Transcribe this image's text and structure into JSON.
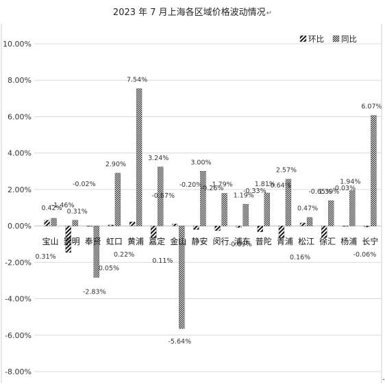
{
  "chart_data": {
    "type": "bar",
    "title": "2023 年 7 月上海各区域价格波动情况",
    "title_mark": "↵",
    "xlabel": "",
    "ylabel": "",
    "ylim": [
      -8,
      10
    ],
    "ytick_step": 2,
    "ytick_labels": [
      "-8.00%",
      "-6.00%",
      "-4.00%",
      "-2.00%",
      "0.00%",
      "2.00%",
      "4.00%",
      "6.00%",
      "8.00%",
      "10.00%"
    ],
    "categories": [
      "宝山",
      "崇明",
      "奉贤",
      "虹口",
      "黄浦",
      "嘉定",
      "金山",
      "静安",
      "闵行",
      "浦东",
      "普陀",
      "青浦",
      "松江",
      "徐汇",
      "杨浦",
      "长宁"
    ],
    "series": [
      {
        "name": "环比",
        "pattern": "diagonal-stripes",
        "values": [
          0.31,
          -1.46,
          -0.02,
          0.05,
          0.22,
          -0.67,
          0.11,
          -0.2,
          -0.26,
          -0.09,
          -0.33,
          -0.64,
          0.16,
          -0.65,
          -0.03,
          -0.06
        ],
        "labels": [
          "0.31%",
          "-1.46%",
          "-0.02%",
          "0.05%",
          "0.22%",
          "-0.67%",
          "0.11%",
          "-0.20%",
          "-0.26%",
          "-0.09%",
          "-0.33%",
          "-0.64%",
          "0.16%",
          "-0.65%",
          "-0.03%",
          "-0.06%"
        ]
      },
      {
        "name": "同比",
        "pattern": "checker",
        "values": [
          0.42,
          0.31,
          -2.83,
          2.9,
          7.54,
          3.24,
          -5.64,
          3.0,
          1.79,
          1.19,
          1.81,
          2.57,
          0.47,
          1.39,
          1.94,
          6.07
        ],
        "labels": [
          "0.42%",
          "0.31%",
          "-2.83%",
          "2.90%",
          "7.54%",
          "3.24%",
          "-5.64%",
          "3.00%",
          "1.79%",
          "1.19%",
          "1.81%",
          "2.57%",
          "0.47%",
          "1.39%",
          "1.94%",
          "6.07%"
        ]
      }
    ],
    "grid": true,
    "legend_position": "top-right"
  }
}
